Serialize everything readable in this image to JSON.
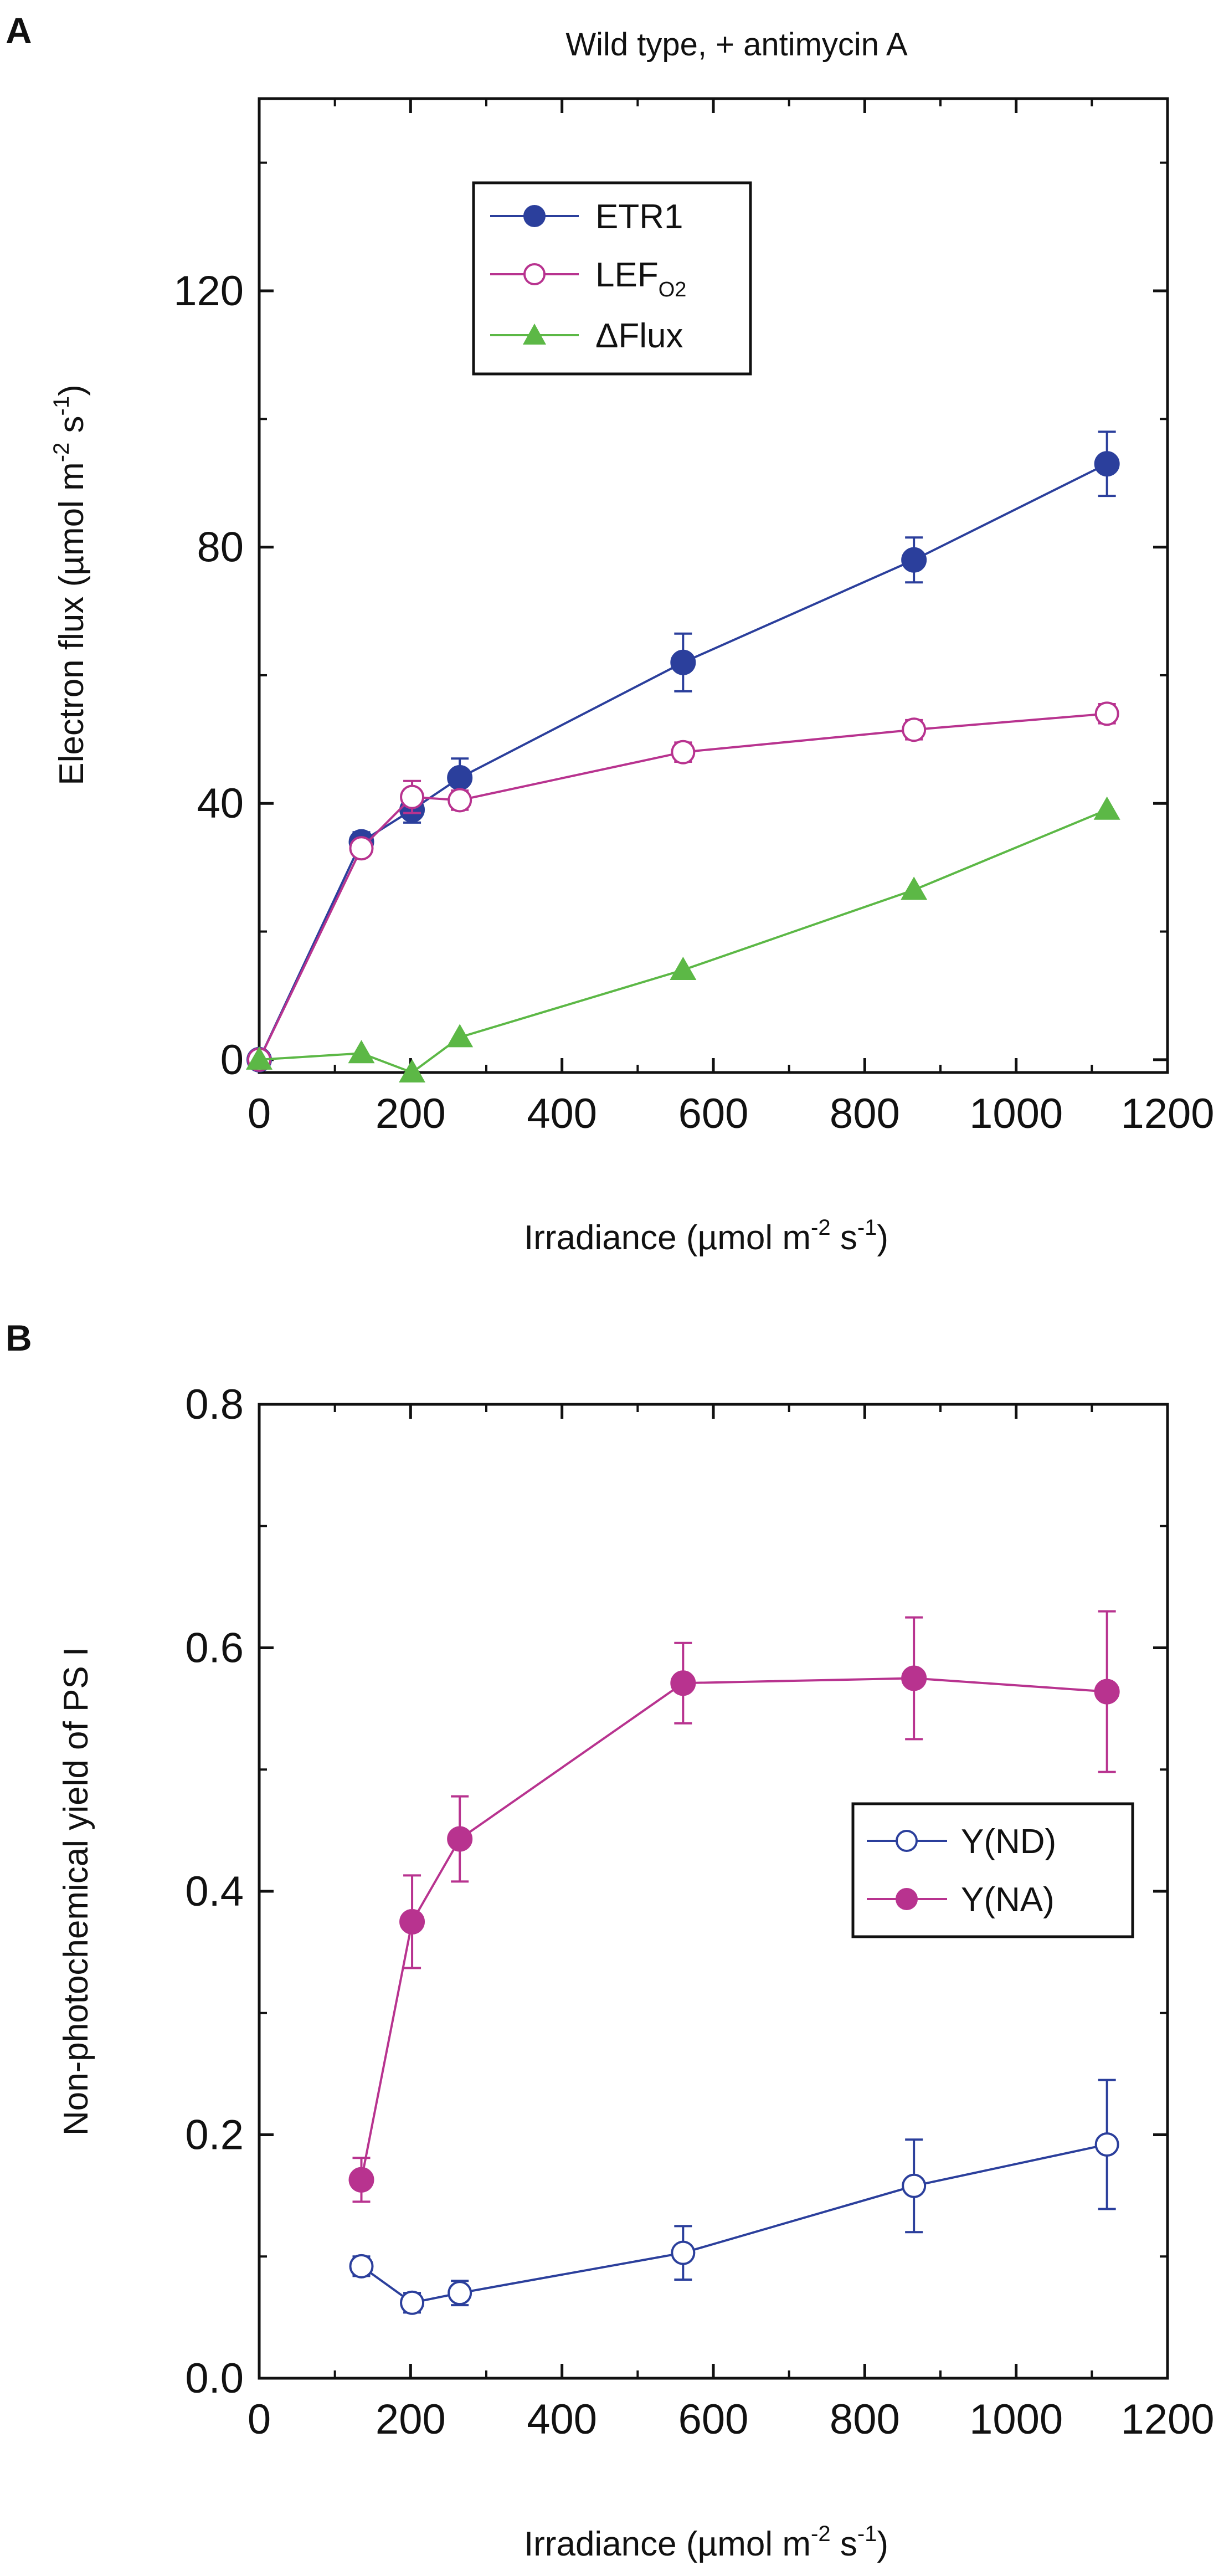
{
  "figure": {
    "panel_a_letter": "A",
    "panel_b_letter": "B"
  },
  "chart_data": [
    {
      "panel": "A",
      "type": "line",
      "title": "Wild type, + antimycin A",
      "xlabel": "Irradiance  (µmol m⁻² s⁻¹)",
      "ylabel": "Electron flux  (µmol m⁻² s⁻¹)",
      "xlim": [
        0,
        1200
      ],
      "ylim": [
        -2,
        150
      ],
      "xticks": [
        0,
        200,
        400,
        600,
        800,
        1000,
        1200
      ],
      "yticks": [
        0,
        40,
        80,
        120
      ],
      "legend_position": "top-left",
      "series": [
        {
          "name": "ETR1",
          "name_main": "ETR1",
          "name_sub": "",
          "color": "#2b3f9c",
          "marker": "circle-filled",
          "x": [
            0,
            135,
            202,
            265,
            560,
            865,
            1120
          ],
          "values": [
            0,
            34,
            39,
            44,
            62,
            78,
            93
          ],
          "errors": [
            0,
            1.5,
            2,
            3,
            4.5,
            3.5,
            5
          ]
        },
        {
          "name": "LEF_O2",
          "name_main": "LEF",
          "name_sub": "O2",
          "color": "#b8338f",
          "marker": "circle-open",
          "x": [
            0,
            135,
            202,
            265,
            560,
            865,
            1120
          ],
          "values": [
            0,
            33,
            41,
            40.5,
            48,
            51.5,
            54
          ],
          "errors": [
            0,
            1,
            2.5,
            1.5,
            1.5,
            1.5,
            1.5
          ]
        },
        {
          "name": "ΔFlux",
          "name_main": "ΔFlux",
          "name_sub": "",
          "color": "#5cb846",
          "marker": "triangle-filled",
          "x": [
            0,
            135,
            202,
            265,
            560,
            865,
            1120
          ],
          "values": [
            0,
            1,
            -2,
            3.5,
            14,
            26.5,
            39
          ],
          "errors": [
            0,
            0,
            0,
            0,
            0,
            0,
            0
          ]
        }
      ]
    },
    {
      "panel": "B",
      "type": "line",
      "title": "",
      "xlabel": "Irradiance  (µmol m⁻² s⁻¹)",
      "ylabel": "Non-photochemical yield of PS I",
      "xlim": [
        0,
        1200
      ],
      "ylim": [
        0,
        0.8
      ],
      "xticks": [
        0,
        200,
        400,
        600,
        800,
        1000,
        1200
      ],
      "yticks": [
        0.0,
        0.2,
        0.4,
        0.6,
        0.8
      ],
      "ytick_labels": [
        "0.0",
        "0.2",
        "0.4",
        "0.6",
        "0.8"
      ],
      "legend_position": "right",
      "series": [
        {
          "name": "Y(ND)",
          "name_main": "Y(ND)",
          "name_sub": "",
          "color": "#2b3f9c",
          "marker": "circle-open",
          "x": [
            135,
            202,
            265,
            560,
            865,
            1120
          ],
          "values": [
            0.092,
            0.062,
            0.07,
            0.103,
            0.158,
            0.192
          ],
          "errors": [
            0.008,
            0.008,
            0.01,
            0.022,
            0.038,
            0.053
          ]
        },
        {
          "name": "Y(NA)",
          "name_main": "Y(NA)",
          "name_sub": "",
          "color": "#b8338f",
          "marker": "circle-filled",
          "x": [
            135,
            202,
            265,
            560,
            865,
            1120
          ],
          "values": [
            0.163,
            0.375,
            0.443,
            0.571,
            0.575,
            0.564
          ],
          "errors": [
            0.018,
            0.038,
            0.035,
            0.033,
            0.05,
            0.066
          ]
        }
      ]
    }
  ]
}
